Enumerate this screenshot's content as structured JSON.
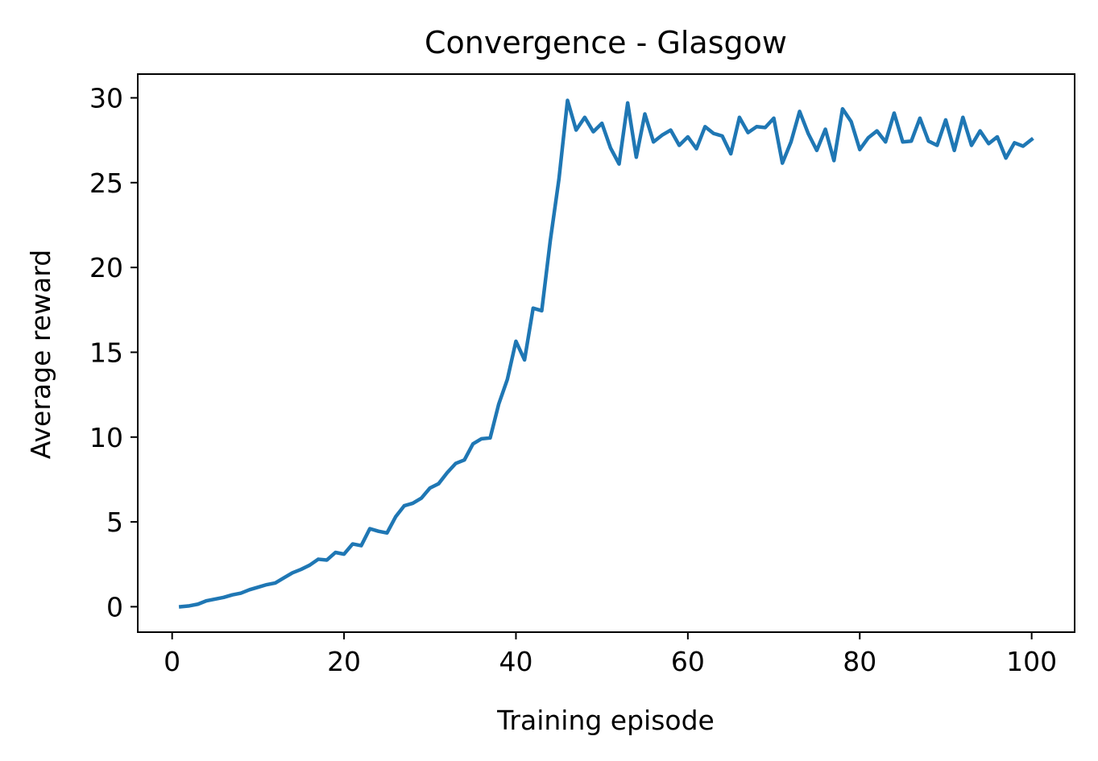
{
  "chart_data": {
    "type": "line",
    "title": "Convergence - Glasgow",
    "xlabel": "Training episode",
    "ylabel": "Average reward",
    "xlim": [
      -4,
      105
    ],
    "ylim": [
      -1.5,
      31.4
    ],
    "xticks": [
      0,
      20,
      40,
      60,
      80,
      100
    ],
    "yticks": [
      0,
      5,
      10,
      15,
      20,
      25,
      30
    ],
    "xtick_labels": [
      "0",
      "20",
      "40",
      "60",
      "80",
      "100"
    ],
    "ytick_labels": [
      "0",
      "5",
      "10",
      "15",
      "20",
      "25",
      "30"
    ],
    "grid": false,
    "legend": "none",
    "color": "#1f77b4",
    "series": [
      {
        "x": [
          1,
          2,
          3,
          4,
          5,
          6,
          7,
          8,
          9,
          10,
          11,
          12,
          13,
          14,
          15,
          16,
          17,
          18,
          19,
          20,
          21,
          22,
          23,
          24,
          25,
          26,
          27,
          28,
          29,
          30,
          31,
          32,
          33,
          34,
          35,
          36,
          37,
          38,
          39,
          40,
          41,
          42,
          43,
          44,
          45,
          46,
          47,
          48,
          49,
          50,
          51,
          52,
          53,
          54,
          55,
          56,
          57,
          58,
          59,
          60,
          61,
          62,
          63,
          64,
          65,
          66,
          67,
          68,
          69,
          70,
          71,
          72,
          73,
          74,
          75,
          76,
          77,
          78,
          79,
          80,
          81,
          82,
          83,
          84,
          85,
          86,
          87,
          88,
          89,
          90,
          91,
          92,
          93,
          94,
          95,
          96,
          97,
          98,
          99,
          100
        ],
        "values": [
          0.0,
          0.05,
          0.15,
          0.35,
          0.45,
          0.55,
          0.7,
          0.8,
          1.0,
          1.15,
          1.3,
          1.4,
          1.7,
          2.0,
          2.2,
          2.45,
          2.8,
          2.75,
          3.2,
          3.1,
          3.7,
          3.6,
          4.6,
          4.45,
          4.35,
          5.3,
          5.95,
          6.1,
          6.4,
          7.0,
          7.25,
          7.9,
          8.45,
          8.65,
          9.6,
          9.9,
          9.95,
          11.95,
          13.4,
          15.65,
          14.55,
          17.6,
          17.45,
          21.6,
          25.2,
          29.85,
          28.1,
          28.85,
          28.0,
          28.5,
          27.05,
          26.1,
          29.7,
          26.5,
          29.05,
          27.4,
          27.8,
          28.1,
          27.2,
          27.7,
          27.0,
          28.3,
          27.9,
          27.75,
          26.7,
          28.85,
          27.95,
          28.3,
          28.25,
          28.8,
          26.15,
          27.4,
          29.2,
          27.9,
          26.9,
          28.15,
          26.3,
          29.35,
          28.6,
          26.95,
          27.65,
          28.05,
          27.4,
          29.1,
          27.4,
          27.45,
          28.8,
          27.45,
          27.2,
          28.7,
          26.9,
          28.85,
          27.2,
          28.05,
          27.3,
          27.7,
          26.45,
          27.35,
          27.15,
          27.55
        ]
      }
    ]
  }
}
